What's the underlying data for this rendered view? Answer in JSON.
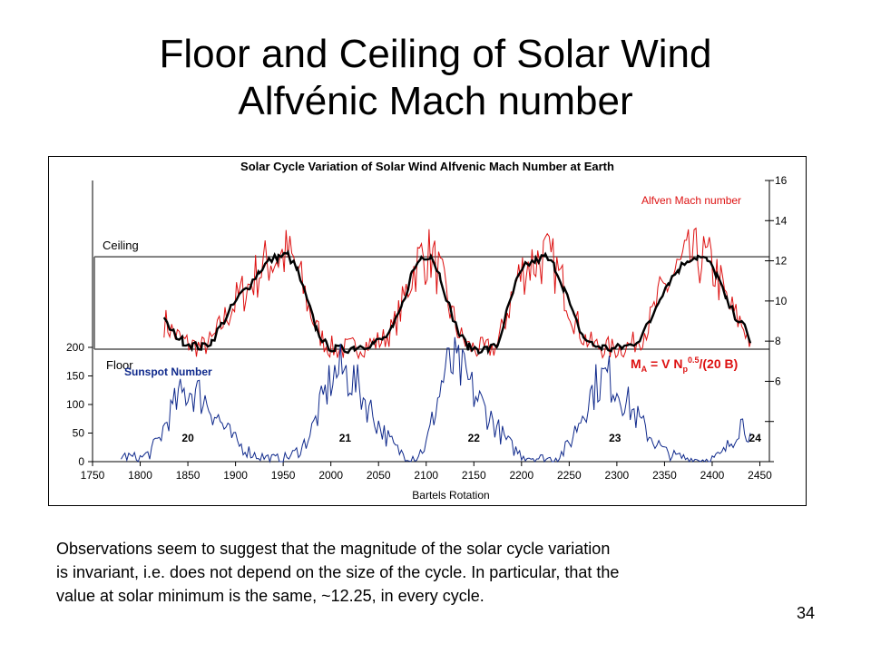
{
  "slide": {
    "title_line1": "Floor and Ceiling of Solar Wind",
    "title_line2": "Alfvénic Mach number",
    "body_lines": [
      "Observations seem to suggest that the magnitude of the solar cycle variation",
      "is invariant, i.e. does not depend on the size of the cycle. In particular, that the",
      "value at solar minimum is the same, ~12.25, in every cycle."
    ],
    "page_number": "34"
  },
  "chart_data": {
    "type": "line",
    "title": "Solar Cycle Variation of Solar Wind Alfvenic Mach Number at Earth",
    "xlabel": "Bartels Rotation",
    "xlim": [
      1750,
      2460
    ],
    "x_ticks": [
      1750,
      1800,
      1850,
      1900,
      1950,
      2000,
      2050,
      2100,
      2150,
      2200,
      2250,
      2300,
      2350,
      2400,
      2450
    ],
    "left_axis": {
      "ylim": [
        0,
        200
      ],
      "ticks": [
        0,
        50,
        100,
        150,
        200
      ]
    },
    "right_axis": {
      "ylim": [
        2,
        16
      ],
      "ticks": [
        6,
        8,
        10,
        12,
        14,
        16
      ]
    },
    "legend_mach": "Alfven Mach number",
    "legend_sunspot": "Sunspot Number",
    "formula": {
      "main": "M",
      "sub_a": "A",
      "mid": " = V N",
      "sub_p": "p",
      "sup": "0.5",
      "tail": "/(20 B)"
    },
    "guide_lines": [
      {
        "label": "Ceiling",
        "value": 12.2
      },
      {
        "label": "Floor",
        "value": 7.6
      }
    ],
    "cycle_labels": [
      {
        "label": "20",
        "x": 1850
      },
      {
        "label": "21",
        "x": 2015
      },
      {
        "label": "22",
        "x": 2150
      },
      {
        "label": "23",
        "x": 2298
      },
      {
        "label": "24",
        "x": 2445
      }
    ],
    "grid": false,
    "series": [
      {
        "name": "Alfven Mach number",
        "color": "#dd1111",
        "axis": "right",
        "x": [
          1825,
          1835,
          1845,
          1855,
          1865,
          1875,
          1885,
          1895,
          1905,
          1915,
          1925,
          1935,
          1945,
          1955,
          1965,
          1975,
          1985,
          1995,
          2005,
          2015,
          2025,
          2035,
          2045,
          2055,
          2065,
          2075,
          2085,
          2095,
          2105,
          2115,
          2125,
          2135,
          2145,
          2155,
          2165,
          2175,
          2185,
          2195,
          2205,
          2215,
          2225,
          2235,
          2245,
          2255,
          2265,
          2275,
          2285,
          2295,
          2305,
          2315,
          2325,
          2335,
          2345,
          2355,
          2365,
          2375,
          2385,
          2395,
          2405,
          2415,
          2425,
          2435,
          2440
        ],
        "y": [
          9.0,
          8.4,
          8.0,
          7.8,
          7.7,
          8.0,
          8.8,
          9.6,
          10.3,
          10.8,
          11.5,
          12.0,
          12.2,
          12.3,
          11.5,
          10.0,
          8.6,
          7.8,
          7.6,
          7.6,
          7.7,
          7.8,
          7.9,
          8.1,
          8.6,
          9.8,
          11.4,
          12.2,
          12.3,
          11.2,
          9.6,
          8.3,
          7.7,
          7.6,
          7.6,
          7.8,
          9.5,
          11.0,
          11.8,
          12.0,
          12.2,
          11.7,
          10.6,
          9.2,
          8.2,
          7.8,
          7.7,
          7.6,
          7.7,
          7.8,
          8.2,
          9.0,
          10.2,
          11.0,
          11.6,
          12.1,
          12.2,
          12.0,
          11.3,
          10.0,
          9.2,
          8.6,
          7.9
        ]
      },
      {
        "name": "Mach number (smoothed)",
        "color": "#000000",
        "axis": "right",
        "x": [
          1825,
          1835,
          1845,
          1855,
          1865,
          1875,
          1885,
          1895,
          1905,
          1915,
          1925,
          1935,
          1945,
          1955,
          1965,
          1975,
          1985,
          1995,
          2005,
          2015,
          2025,
          2035,
          2045,
          2055,
          2065,
          2075,
          2085,
          2095,
          2105,
          2115,
          2125,
          2135,
          2145,
          2155,
          2165,
          2175,
          2185,
          2195,
          2205,
          2215,
          2225,
          2235,
          2245,
          2255,
          2265,
          2275,
          2285,
          2295,
          2305,
          2315,
          2325,
          2335,
          2345,
          2355,
          2365,
          2375,
          2385,
          2395,
          2405,
          2415,
          2425,
          2435,
          2440
        ],
        "y": [
          9.0,
          8.4,
          8.0,
          7.8,
          7.7,
          8.0,
          8.8,
          9.6,
          10.3,
          10.8,
          11.5,
          12.0,
          12.2,
          12.3,
          11.5,
          10.0,
          8.6,
          7.8,
          7.6,
          7.6,
          7.7,
          7.8,
          7.9,
          8.1,
          8.6,
          9.8,
          11.4,
          12.2,
          12.3,
          11.2,
          9.6,
          8.3,
          7.7,
          7.6,
          7.6,
          7.8,
          9.5,
          11.0,
          11.8,
          12.0,
          12.2,
          11.7,
          10.6,
          9.2,
          8.2,
          7.8,
          7.7,
          7.6,
          7.7,
          7.8,
          8.2,
          9.0,
          10.2,
          11.0,
          11.6,
          12.1,
          12.2,
          12.0,
          11.3,
          10.0,
          9.2,
          8.6,
          7.9
        ]
      },
      {
        "name": "Sunspot Number",
        "color": "#102a8c",
        "axis": "left",
        "x": [
          1780,
          1790,
          1800,
          1810,
          1820,
          1830,
          1840,
          1850,
          1860,
          1870,
          1880,
          1890,
          1900,
          1910,
          1920,
          1930,
          1940,
          1950,
          1960,
          1970,
          1980,
          1990,
          2000,
          2010,
          2020,
          2030,
          2040,
          2050,
          2060,
          2070,
          2080,
          2090,
          2100,
          2110,
          2120,
          2130,
          2140,
          2150,
          2160,
          2170,
          2180,
          2190,
          2200,
          2210,
          2220,
          2230,
          2240,
          2250,
          2260,
          2270,
          2280,
          2290,
          2300,
          2310,
          2320,
          2330,
          2340,
          2350,
          2360,
          2370,
          2380,
          2390,
          2400,
          2410,
          2420,
          2430,
          2440
        ],
        "y": [
          10,
          8,
          6,
          15,
          40,
          80,
          110,
          125,
          120,
          105,
          80,
          55,
          35,
          22,
          12,
          8,
          5,
          5,
          12,
          25,
          55,
          100,
          145,
          160,
          150,
          125,
          95,
          65,
          40,
          20,
          10,
          8,
          30,
          95,
          160,
          170,
          150,
          120,
          95,
          70,
          45,
          25,
          12,
          8,
          6,
          5,
          10,
          30,
          70,
          110,
          140,
          150,
          130,
          105,
          80,
          55,
          35,
          18,
          10,
          7,
          4,
          3,
          5,
          12,
          35,
          70,
          50
        ]
      }
    ]
  }
}
